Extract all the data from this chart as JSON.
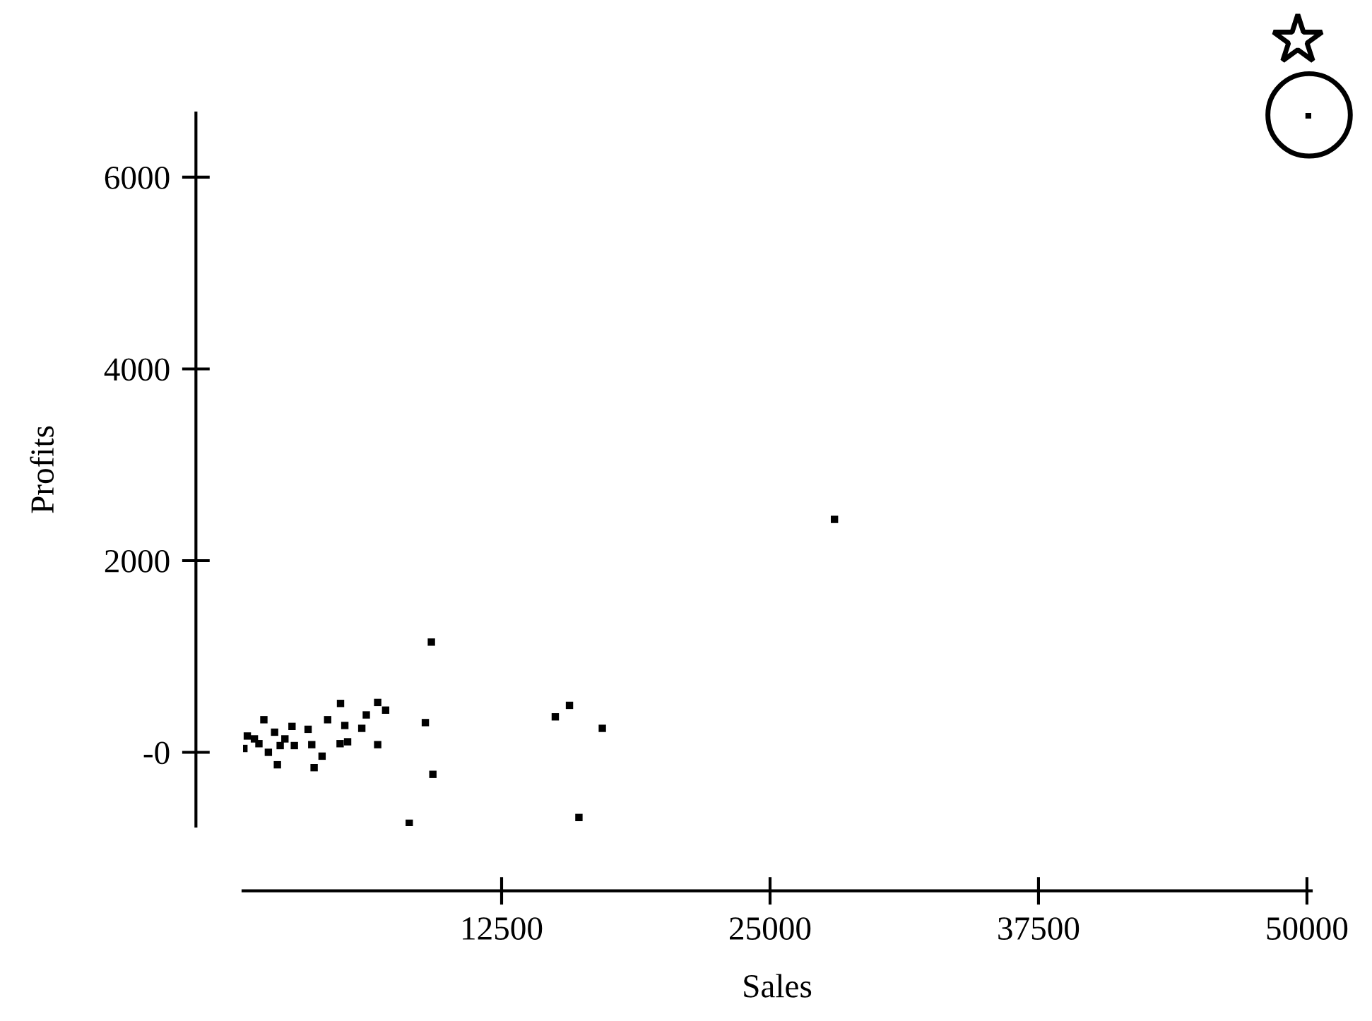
{
  "chart_data": {
    "type": "scatter",
    "xlabel": "Sales",
    "ylabel": "Profits",
    "x": [
      9230,
      8950,
      9300,
      8200,
      15000,
      15660,
      17190,
      16100,
      5000,
      6730,
      7100,
      6200,
      4400,
      5200,
      5990,
      6730,
      4980,
      5330,
      4140,
      3770,
      3490,
      3660,
      1430,
      2060,
      2740,
      1930,
      2410,
      2850,
      1640,
      1200,
      660,
      500,
      990,
      2190,
      28000,
      50100
    ],
    "values": [
      1150,
      310,
      -230,
      -740,
      370,
      490,
      250,
      -680,
      510,
      520,
      440,
      390,
      340,
      280,
      250,
      80,
      90,
      110,
      -40,
      -160,
      240,
      80,
      340,
      -130,
      270,
      210,
      140,
      70,
      0,
      90,
      170,
      40,
      140,
      70,
      2430,
      6650
    ],
    "color": "#000000",
    "marker": "square",
    "xlim": [
      460,
      50200
    ],
    "ylim": [
      -770,
      6670
    ],
    "xticks": [
      12500,
      25000,
      37500,
      50000
    ],
    "yticks": [
      {
        "value": 0,
        "label": "-0"
      },
      2000,
      4000,
      6000
    ],
    "grid": false
  }
}
